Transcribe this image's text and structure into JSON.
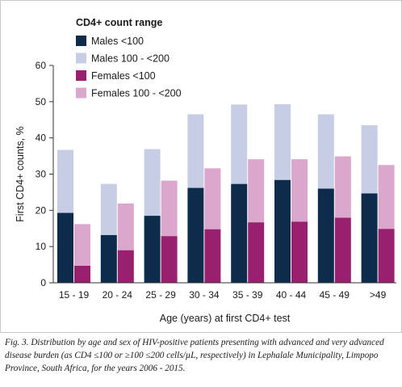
{
  "colors": {
    "males_lt100": "#0d2b4b",
    "males_100_200": "#c7cde5",
    "females_lt100": "#98206f",
    "females_100_200": "#dba7cc",
    "axis": "#333333"
  },
  "chart_data": {
    "type": "bar",
    "stacked_groups": true,
    "categories": [
      "15 - 19",
      "20 - 24",
      "25 - 29",
      "30 - 34",
      "35 - 39",
      "40 - 44",
      "45 - 49",
      ">49"
    ],
    "series": [
      {
        "name": "Males <100",
        "stack": "males",
        "values": [
          19.3,
          13.2,
          18.5,
          26.2,
          27.3,
          28.4,
          26.0,
          24.7
        ]
      },
      {
        "name": "Males 100 - <200",
        "stack": "males",
        "values": [
          17.4,
          14.1,
          18.4,
          20.3,
          21.9,
          20.9,
          20.5,
          18.8
        ]
      },
      {
        "name": "Females <100",
        "stack": "females",
        "values": [
          4.7,
          9.0,
          12.9,
          14.8,
          16.7,
          16.9,
          18.0,
          14.9
        ]
      },
      {
        "name": "Females 100 - <200",
        "stack": "females",
        "values": [
          11.5,
          12.9,
          15.3,
          16.8,
          17.4,
          17.2,
          16.9,
          17.6
        ]
      }
    ],
    "legend_title": "CD4+ count range",
    "xlabel": "Age (years) at first CD4+ test",
    "ylabel": "First CD4+ counts, %",
    "ylim": [
      0,
      60
    ],
    "yticks": [
      0,
      10,
      20,
      30,
      40,
      50,
      60
    ],
    "grid": false,
    "legend_position": "top-left"
  },
  "caption": "Fig. 3. Distribution by age and sex of HIV-positive patients presenting with advanced and very advanced disease burden (as CD4 ≤100 or ≥100 ≤200 cells/µL, respectively) in Lephalale Municipality, Limpopo Province, South Africa, for the years 2006 - 2015."
}
